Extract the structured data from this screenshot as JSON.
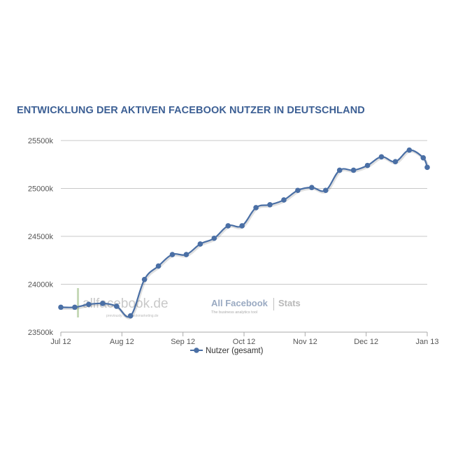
{
  "chart_data": {
    "type": "line",
    "title": "ENTWICKLUNG DER AKTIVEN FACEBOOK NUTZER IN DEUTSCHLAND",
    "xlabel": "",
    "ylabel": "",
    "x_ticks": [
      "Jul 12",
      "Aug 12",
      "Sep 12",
      "Oct 12",
      "Nov 12",
      "Dec 12",
      "Jan 13"
    ],
    "y_ticks": [
      "25500k",
      "25000k",
      "24500k",
      "24000k",
      "23500k"
    ],
    "ylim": [
      23500,
      25500
    ],
    "x_range_days": [
      0,
      184
    ],
    "grid": true,
    "legend_placement": "bottom-center",
    "series": [
      {
        "name": "Nutzer (gesamt)",
        "color": "#4a6fa5",
        "x_days": [
          0,
          7,
          14,
          21,
          28,
          35,
          42,
          49,
          56,
          63,
          70,
          77,
          84,
          91,
          98,
          105,
          112,
          119,
          126,
          133,
          140,
          147,
          154,
          161,
          168,
          175,
          182,
          184
        ],
        "values": [
          23760,
          23760,
          23790,
          23800,
          23770,
          23670,
          24050,
          24190,
          24310,
          24310,
          24420,
          24480,
          24610,
          24610,
          24800,
          24830,
          24880,
          24980,
          25010,
          24980,
          25190,
          25190,
          25240,
          25330,
          25280,
          25400,
          25320,
          25220
        ]
      }
    ],
    "watermark": {
      "left_logo": "allfacebook.de",
      "left_sub": "previously: facebookmarketing.de",
      "right_logo_main": "All Facebook",
      "right_logo_stats": "Stats",
      "right_sub": "The business analytics tool"
    }
  }
}
